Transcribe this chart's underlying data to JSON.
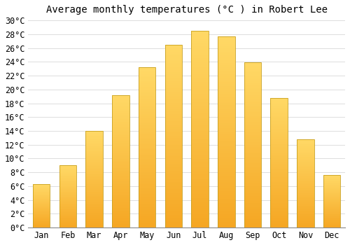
{
  "title": "Average monthly temperatures (Â°C ) in Robert Lee",
  "title_text": "Average monthly temperatures (°C ) in Robert Lee",
  "months": [
    "Jan",
    "Feb",
    "Mar",
    "Apr",
    "May",
    "Jun",
    "Jul",
    "Aug",
    "Sep",
    "Oct",
    "Nov",
    "Dec"
  ],
  "values": [
    6.3,
    9.0,
    14.0,
    19.2,
    23.2,
    26.5,
    28.5,
    27.7,
    23.9,
    18.8,
    12.8,
    7.6
  ],
  "bar_color_bottom": "#F5A623",
  "bar_color_top": "#FFD966",
  "bar_edge_color": "#C8A020",
  "ylim": [
    0,
    30
  ],
  "ytick_step": 2,
  "background_color": "#ffffff",
  "grid_color": "#dddddd",
  "title_fontsize": 10,
  "tick_fontsize": 8.5,
  "font_family": "monospace"
}
